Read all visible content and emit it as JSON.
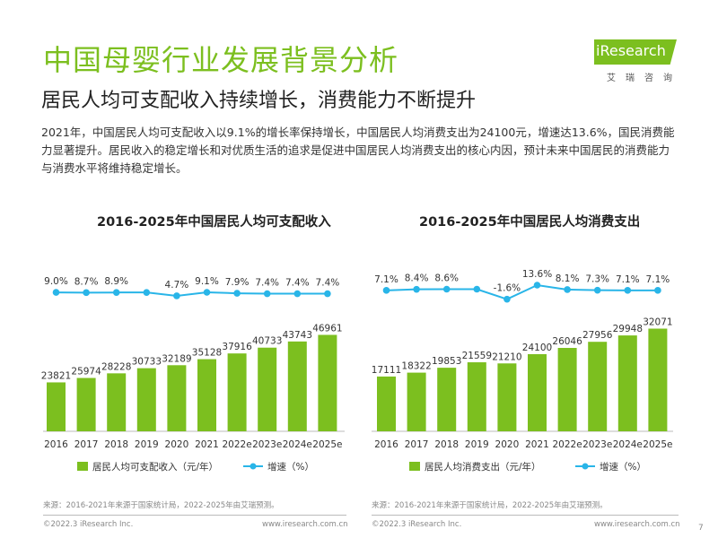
{
  "header": {
    "title": "中国母婴行业发展背景分析",
    "subtitle": "居民人均可支配收入持续增长，消费能力不断提升",
    "logo_text": "iResearch",
    "logo_sub": "艾瑞咨询"
  },
  "intro_text": "2021年，中国居民人均可支配收入以9.1%的增长率保持增长，中国居民人均消费支出为24100元，增速达13.6%，国民消费能力显著提升。居民收入的稳定增长和对优质生活的追求是促进中国居民人均消费支出的核心内因，预计未来中国居民的消费能力与消费水平将维持稳定增长。",
  "colors": {
    "bar": "#7cbf1f",
    "line": "#29b5e8",
    "title": "#7cbf1f"
  },
  "chart_data": [
    {
      "type": "bar",
      "title": "2016-2025年中国居民人均可支配收入",
      "categories": [
        "2016",
        "2017",
        "2018",
        "2019",
        "2020",
        "2021",
        "2022e",
        "2023e",
        "2024e",
        "2025e"
      ],
      "series": [
        {
          "name": "居民人均可支配收入（元/年）",
          "type": "bar",
          "values": [
            23821,
            25974,
            28228,
            30733,
            32189,
            35128,
            37916,
            40733,
            43743,
            46961
          ],
          "labels": [
            "23821",
            "25974",
            "28228",
            "30733",
            "32189",
            "35128",
            "37916",
            "40733",
            "43743",
            "46961"
          ]
        },
        {
          "name": "增速（%）",
          "type": "line",
          "values": [
            9.0,
            8.7,
            8.9,
            8.9,
            4.7,
            9.1,
            7.9,
            7.4,
            7.4,
            7.4
          ],
          "labels": [
            "9.0%",
            "8.7%",
            "8.9%",
            "",
            "4.7%",
            "9.1%",
            "7.9%",
            "7.4%",
            "7.4%",
            "7.4%"
          ]
        }
      ],
      "legend": "bottom",
      "grid": false
    },
    {
      "type": "bar",
      "title": "2016-2025年中国居民人均消费支出",
      "categories": [
        "2016",
        "2017",
        "2018",
        "2019",
        "2020",
        "2021",
        "2022e",
        "2023e",
        "2024e",
        "2025e"
      ],
      "series": [
        {
          "name": "居民人均消费支出（元/年）",
          "type": "bar",
          "values": [
            17111,
            18322,
            19853,
            21559,
            21210,
            24100,
            26046,
            27956,
            29948,
            32071
          ],
          "labels": [
            "17111",
            "18322",
            "19853",
            "21559",
            "21210",
            "24100",
            "26046",
            "27956",
            "29948",
            "32071"
          ]
        },
        {
          "name": "增速（%）",
          "type": "line",
          "values": [
            7.1,
            8.4,
            8.6,
            8.6,
            -1.6,
            13.6,
            8.1,
            7.3,
            7.1,
            7.1
          ],
          "labels": [
            "7.1%",
            "8.4%",
            "8.6%",
            "",
            "-1.6%",
            "13.6%",
            "8.1%",
            "7.3%",
            "7.1%",
            "7.1%"
          ]
        }
      ],
      "legend": "bottom",
      "grid": false
    }
  ],
  "sources": [
    "来源：2016-2021年来源于国家统计局，2022-2025年由艾瑞预测。",
    "来源：2016-2021年来源于国家统计局，2022-2025年由艾瑞预测。"
  ],
  "footer": {
    "copyright": "©2022.3 iResearch Inc.",
    "website": "www.iresearch.com.cn",
    "page": "7"
  }
}
